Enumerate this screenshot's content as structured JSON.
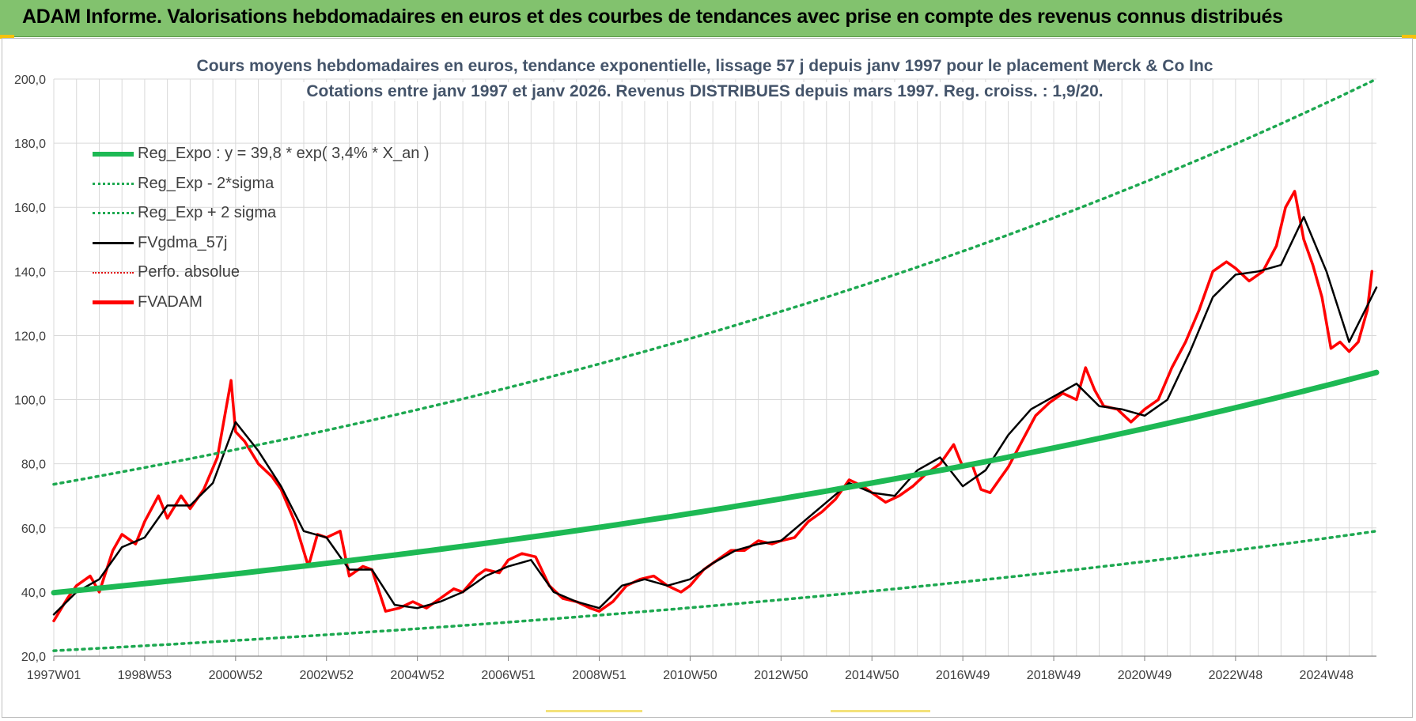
{
  "header": {
    "title": "ADAM Informe. Valorisations hebdomadaires en euros et des courbes de tendances avec prise en compte des revenus connus distribués"
  },
  "colors": {
    "banner": "#82c26e",
    "reg_expo": "#1db954",
    "reg_dotted": "#1da850",
    "fvgdma": "#000000",
    "perfo": "#e00000",
    "fvadam": "#ff0000",
    "grid": "#d9d9d9"
  },
  "chart_data": {
    "type": "line",
    "title": "Cours moyens hebdomadaires en euros, tendance exponentielle, lissage 57 j depuis janv 1997  pour le placement Merck & Co Inc",
    "subtitle": "Cotations entre janv 1997 et janv 2026. Revenus DISTRIBUES depuis mars 1997.  Reg. croiss. : 1,9/20.",
    "xlabel": "",
    "ylabel": "",
    "ylim": [
      20,
      200
    ],
    "yticks": [
      "20,0",
      "40,0",
      "60,0",
      "80,0",
      "100,0",
      "120,0",
      "140,0",
      "160,0",
      "180,0",
      "200,0"
    ],
    "xlim": [
      1997.0,
      2026.1
    ],
    "xticks": [
      {
        "x": 1997.0,
        "label": "1997W01"
      },
      {
        "x": 1999.0,
        "label": "1998W53"
      },
      {
        "x": 2001.0,
        "label": "2000W52"
      },
      {
        "x": 2003.0,
        "label": "2002W52"
      },
      {
        "x": 2005.0,
        "label": "2004W52"
      },
      {
        "x": 2007.0,
        "label": "2006W51"
      },
      {
        "x": 2009.0,
        "label": "2008W51"
      },
      {
        "x": 2011.0,
        "label": "2010W50"
      },
      {
        "x": 2013.0,
        "label": "2012W50"
      },
      {
        "x": 2015.0,
        "label": "2014W50"
      },
      {
        "x": 2017.0,
        "label": "2016W49"
      },
      {
        "x": 2019.0,
        "label": "2018W49"
      },
      {
        "x": 2021.0,
        "label": "2020W49"
      },
      {
        "x": 2023.0,
        "label": "2022W48"
      },
      {
        "x": 2025.0,
        "label": "2024W48"
      }
    ],
    "grid": true,
    "legend_position": "top-left",
    "series": [
      {
        "name": "Reg_Expo : y = 39,8 * exp( 3,4% *  X_an )",
        "style": "solid-thick",
        "x": [
          1997.0,
          2002.0,
          2007.0,
          2012.0,
          2017.0,
          2022.0,
          2026.1
        ],
        "values": [
          39.8,
          47.2,
          56.2,
          66.9,
          79.4,
          94.6,
          108.5
        ]
      },
      {
        "name": "Reg_Exp - 2*sigma",
        "style": "dotted",
        "x": [
          1997.0,
          2002.0,
          2007.0,
          2012.0,
          2017.0,
          2022.0,
          2026.1
        ],
        "values": [
          21.7,
          25.8,
          30.6,
          36.4,
          43.3,
          51.5,
          59.0
        ]
      },
      {
        "name": "Reg_Exp + 2 sigma",
        "style": "dotted",
        "x": [
          1997.0,
          2002.0,
          2007.0,
          2012.0,
          2017.0,
          2022.0,
          2026.1
        ],
        "values": [
          73.6,
          87.5,
          104.0,
          123.7,
          147.0,
          174.8,
          200.0
        ]
      },
      {
        "name": "FVgdma_57j",
        "style": "solid",
        "x": [
          1997.0,
          1997.5,
          1998.0,
          1998.5,
          1999.0,
          1999.5,
          2000.0,
          2000.5,
          2001.0,
          2001.5,
          2002.0,
          2002.5,
          2003.0,
          2003.5,
          2004.0,
          2004.5,
          2005.0,
          2005.5,
          2006.0,
          2006.5,
          2007.0,
          2007.5,
          2008.0,
          2008.5,
          2009.0,
          2009.5,
          2010.0,
          2010.5,
          2011.0,
          2011.5,
          2012.0,
          2012.5,
          2013.0,
          2013.5,
          2014.0,
          2014.5,
          2015.0,
          2015.5,
          2016.0,
          2016.5,
          2017.0,
          2017.5,
          2018.0,
          2018.5,
          2019.0,
          2019.5,
          2020.0,
          2020.5,
          2021.0,
          2021.5,
          2022.0,
          2022.5,
          2023.0,
          2023.5,
          2024.0,
          2024.5,
          2025.0,
          2025.5,
          2026.1
        ],
        "values": [
          33,
          40,
          44,
          54,
          57,
          67,
          67,
          74,
          93,
          84,
          73,
          59,
          57,
          47,
          47,
          36,
          35,
          37,
          40,
          45,
          48,
          50,
          40,
          37,
          35,
          42,
          44,
          42,
          44,
          49,
          53,
          55,
          56,
          62,
          68,
          74,
          71,
          70,
          78,
          82,
          73,
          78,
          89,
          97,
          101,
          105,
          98,
          97,
          95,
          100,
          115,
          132,
          139,
          140,
          142,
          157,
          140,
          118,
          135
        ]
      },
      {
        "name": "Perfo. absolue",
        "style": "dotted",
        "x": [],
        "values": []
      },
      {
        "name": "FVADAM",
        "style": "solid-thick",
        "x": [
          1997.0,
          1997.3,
          1997.5,
          1997.8,
          1998.0,
          1998.3,
          1998.5,
          1998.8,
          1999.0,
          1999.3,
          1999.5,
          1999.8,
          2000.0,
          2000.3,
          2000.6,
          2000.8,
          2000.9,
          2001.0,
          2001.2,
          2001.5,
          2001.8,
          2002.0,
          2002.3,
          2002.6,
          2002.8,
          2003.0,
          2003.3,
          2003.5,
          2003.8,
          2004.0,
          2004.3,
          2004.6,
          2004.9,
          2005.2,
          2005.5,
          2005.8,
          2006.0,
          2006.3,
          2006.5,
          2006.8,
          2007.0,
          2007.3,
          2007.6,
          2007.9,
          2008.2,
          2008.5,
          2008.8,
          2009.0,
          2009.3,
          2009.6,
          2009.9,
          2010.2,
          2010.5,
          2010.8,
          2011.0,
          2011.3,
          2011.6,
          2011.9,
          2012.2,
          2012.5,
          2012.8,
          2013.0,
          2013.3,
          2013.6,
          2013.9,
          2014.2,
          2014.5,
          2014.8,
          2015.0,
          2015.3,
          2015.6,
          2015.9,
          2016.2,
          2016.5,
          2016.8,
          2017.0,
          2017.2,
          2017.4,
          2017.6,
          2017.8,
          2018.0,
          2018.3,
          2018.6,
          2018.9,
          2019.2,
          2019.5,
          2019.7,
          2019.9,
          2020.1,
          2020.4,
          2020.7,
          2021.0,
          2021.3,
          2021.6,
          2021.9,
          2022.2,
          2022.5,
          2022.8,
          2023.0,
          2023.3,
          2023.6,
          2023.9,
          2024.1,
          2024.3,
          2024.5,
          2024.7,
          2024.9,
          2025.1,
          2025.3,
          2025.5,
          2025.7,
          2025.9,
          2026.0
        ],
        "values": [
          31,
          38,
          42,
          45,
          40,
          53,
          58,
          55,
          62,
          70,
          63,
          70,
          66,
          72,
          82,
          98,
          106,
          90,
          87,
          80,
          76,
          72,
          62,
          48,
          58,
          57,
          59,
          45,
          48,
          47,
          34,
          35,
          37,
          35,
          38,
          41,
          40,
          45,
          47,
          46,
          50,
          52,
          51,
          42,
          38,
          37,
          35,
          34,
          37,
          42,
          44,
          45,
          42,
          40,
          42,
          47,
          50,
          53,
          53,
          56,
          55,
          56,
          57,
          62,
          65,
          69,
          75,
          73,
          71,
          68,
          70,
          73,
          77,
          80,
          86,
          79,
          80,
          72,
          71,
          75,
          79,
          87,
          95,
          99,
          102,
          100,
          110,
          103,
          98,
          97,
          93,
          97,
          100,
          110,
          118,
          128,
          140,
          143,
          141,
          137,
          140,
          148,
          160,
          165,
          150,
          142,
          132,
          116,
          118,
          115,
          118,
          128,
          140
        ]
      }
    ]
  }
}
